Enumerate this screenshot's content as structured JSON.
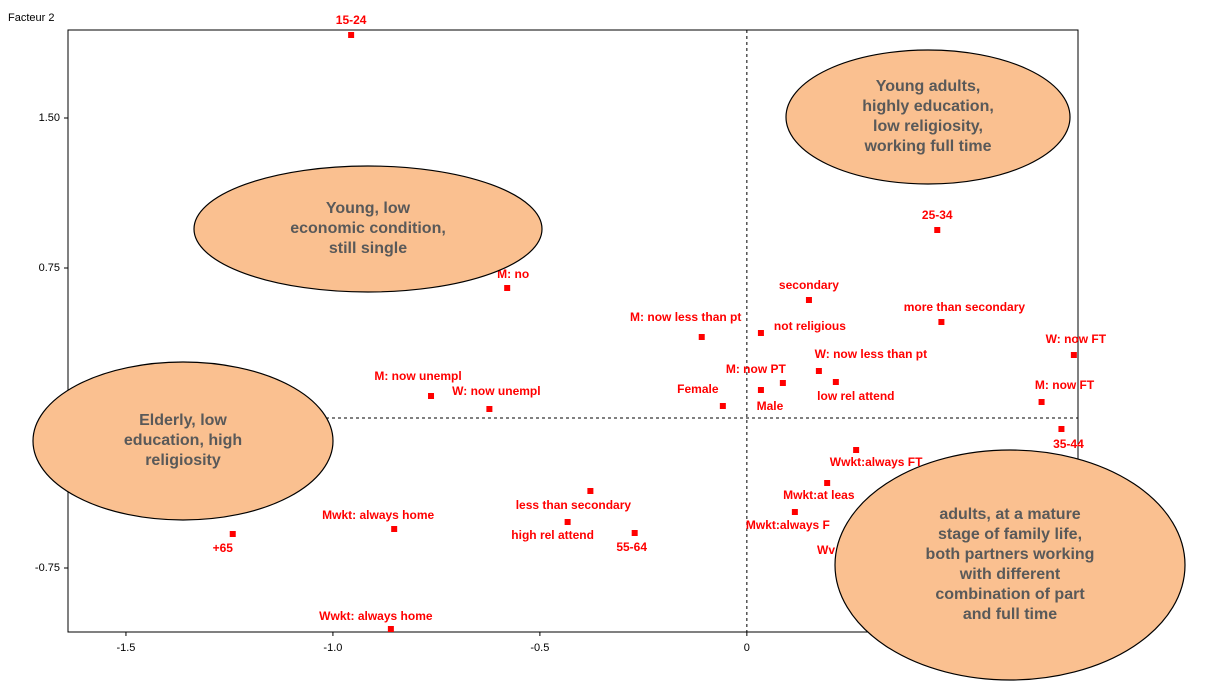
{
  "chart_data": {
    "type": "scatter",
    "y_label": "Facteur 2",
    "point_labels": [
      "15-24",
      "25-34",
      "M: no",
      "secondary",
      "more than secondary",
      "M: now less than pt",
      "not religious",
      "W: now FT",
      "W: now less than pt",
      "M: now PT",
      "low rel attend",
      "M: now unempl",
      "W: now unempl",
      "Female",
      "Male",
      "M: now FT",
      "35-44",
      "Wwkt:always FT",
      "Mwkt:at leas",
      "Mwkt:always F",
      "Wv",
      "less than secondary",
      "high rel attend",
      "55-64",
      "Mwkt: always home",
      "+65",
      "Wwkt: always home"
    ],
    "x": [
      -0.956,
      0.46,
      -0.579,
      0.15,
      0.47,
      -0.109,
      0.034,
      0.79,
      0.174,
      0.087,
      0.215,
      -0.763,
      -0.622,
      -0.058,
      0.034,
      0.712,
      0.76,
      0.264,
      0.194,
      0.116,
      0.23,
      -0.378,
      -0.433,
      -0.271,
      -0.852,
      -1.242,
      -0.86
    ],
    "y": [
      1.915,
      0.94,
      0.65,
      0.59,
      0.48,
      0.405,
      0.425,
      0.315,
      0.235,
      0.175,
      0.18,
      0.11,
      0.045,
      0.06,
      0.14,
      0.08,
      -0.055,
      -0.16,
      -0.325,
      -0.47,
      -0.63,
      -0.365,
      -0.52,
      -0.575,
      -0.555,
      -0.58,
      -1.055
    ],
    "color": "#ff0000",
    "xlim": [
      -1.64,
      0.8
    ],
    "ylim": [
      -1.07,
      1.94
    ],
    "xticks": [
      -1.5,
      {
        "value": -1,
        "label": "-1.0"
      },
      -0.5,
      0
    ],
    "yticks": [
      -0.75,
      0.75,
      {
        "value": 1.5,
        "label": "1.50"
      }
    ],
    "annotations": [
      {
        "lines": [
          "Young, low",
          "economic condition,",
          "still single"
        ]
      },
      {
        "lines": [
          "Young adults,",
          "highly education,",
          "low religiosity,",
          "working full time"
        ]
      },
      {
        "lines": [
          "Elderly, low",
          "education, high",
          "religiosity"
        ]
      },
      {
        "lines": [
          "adults, at a mature",
          "stage of family life,",
          "both partners working",
          "with different",
          "combination of part",
          "and full time"
        ]
      }
    ]
  }
}
